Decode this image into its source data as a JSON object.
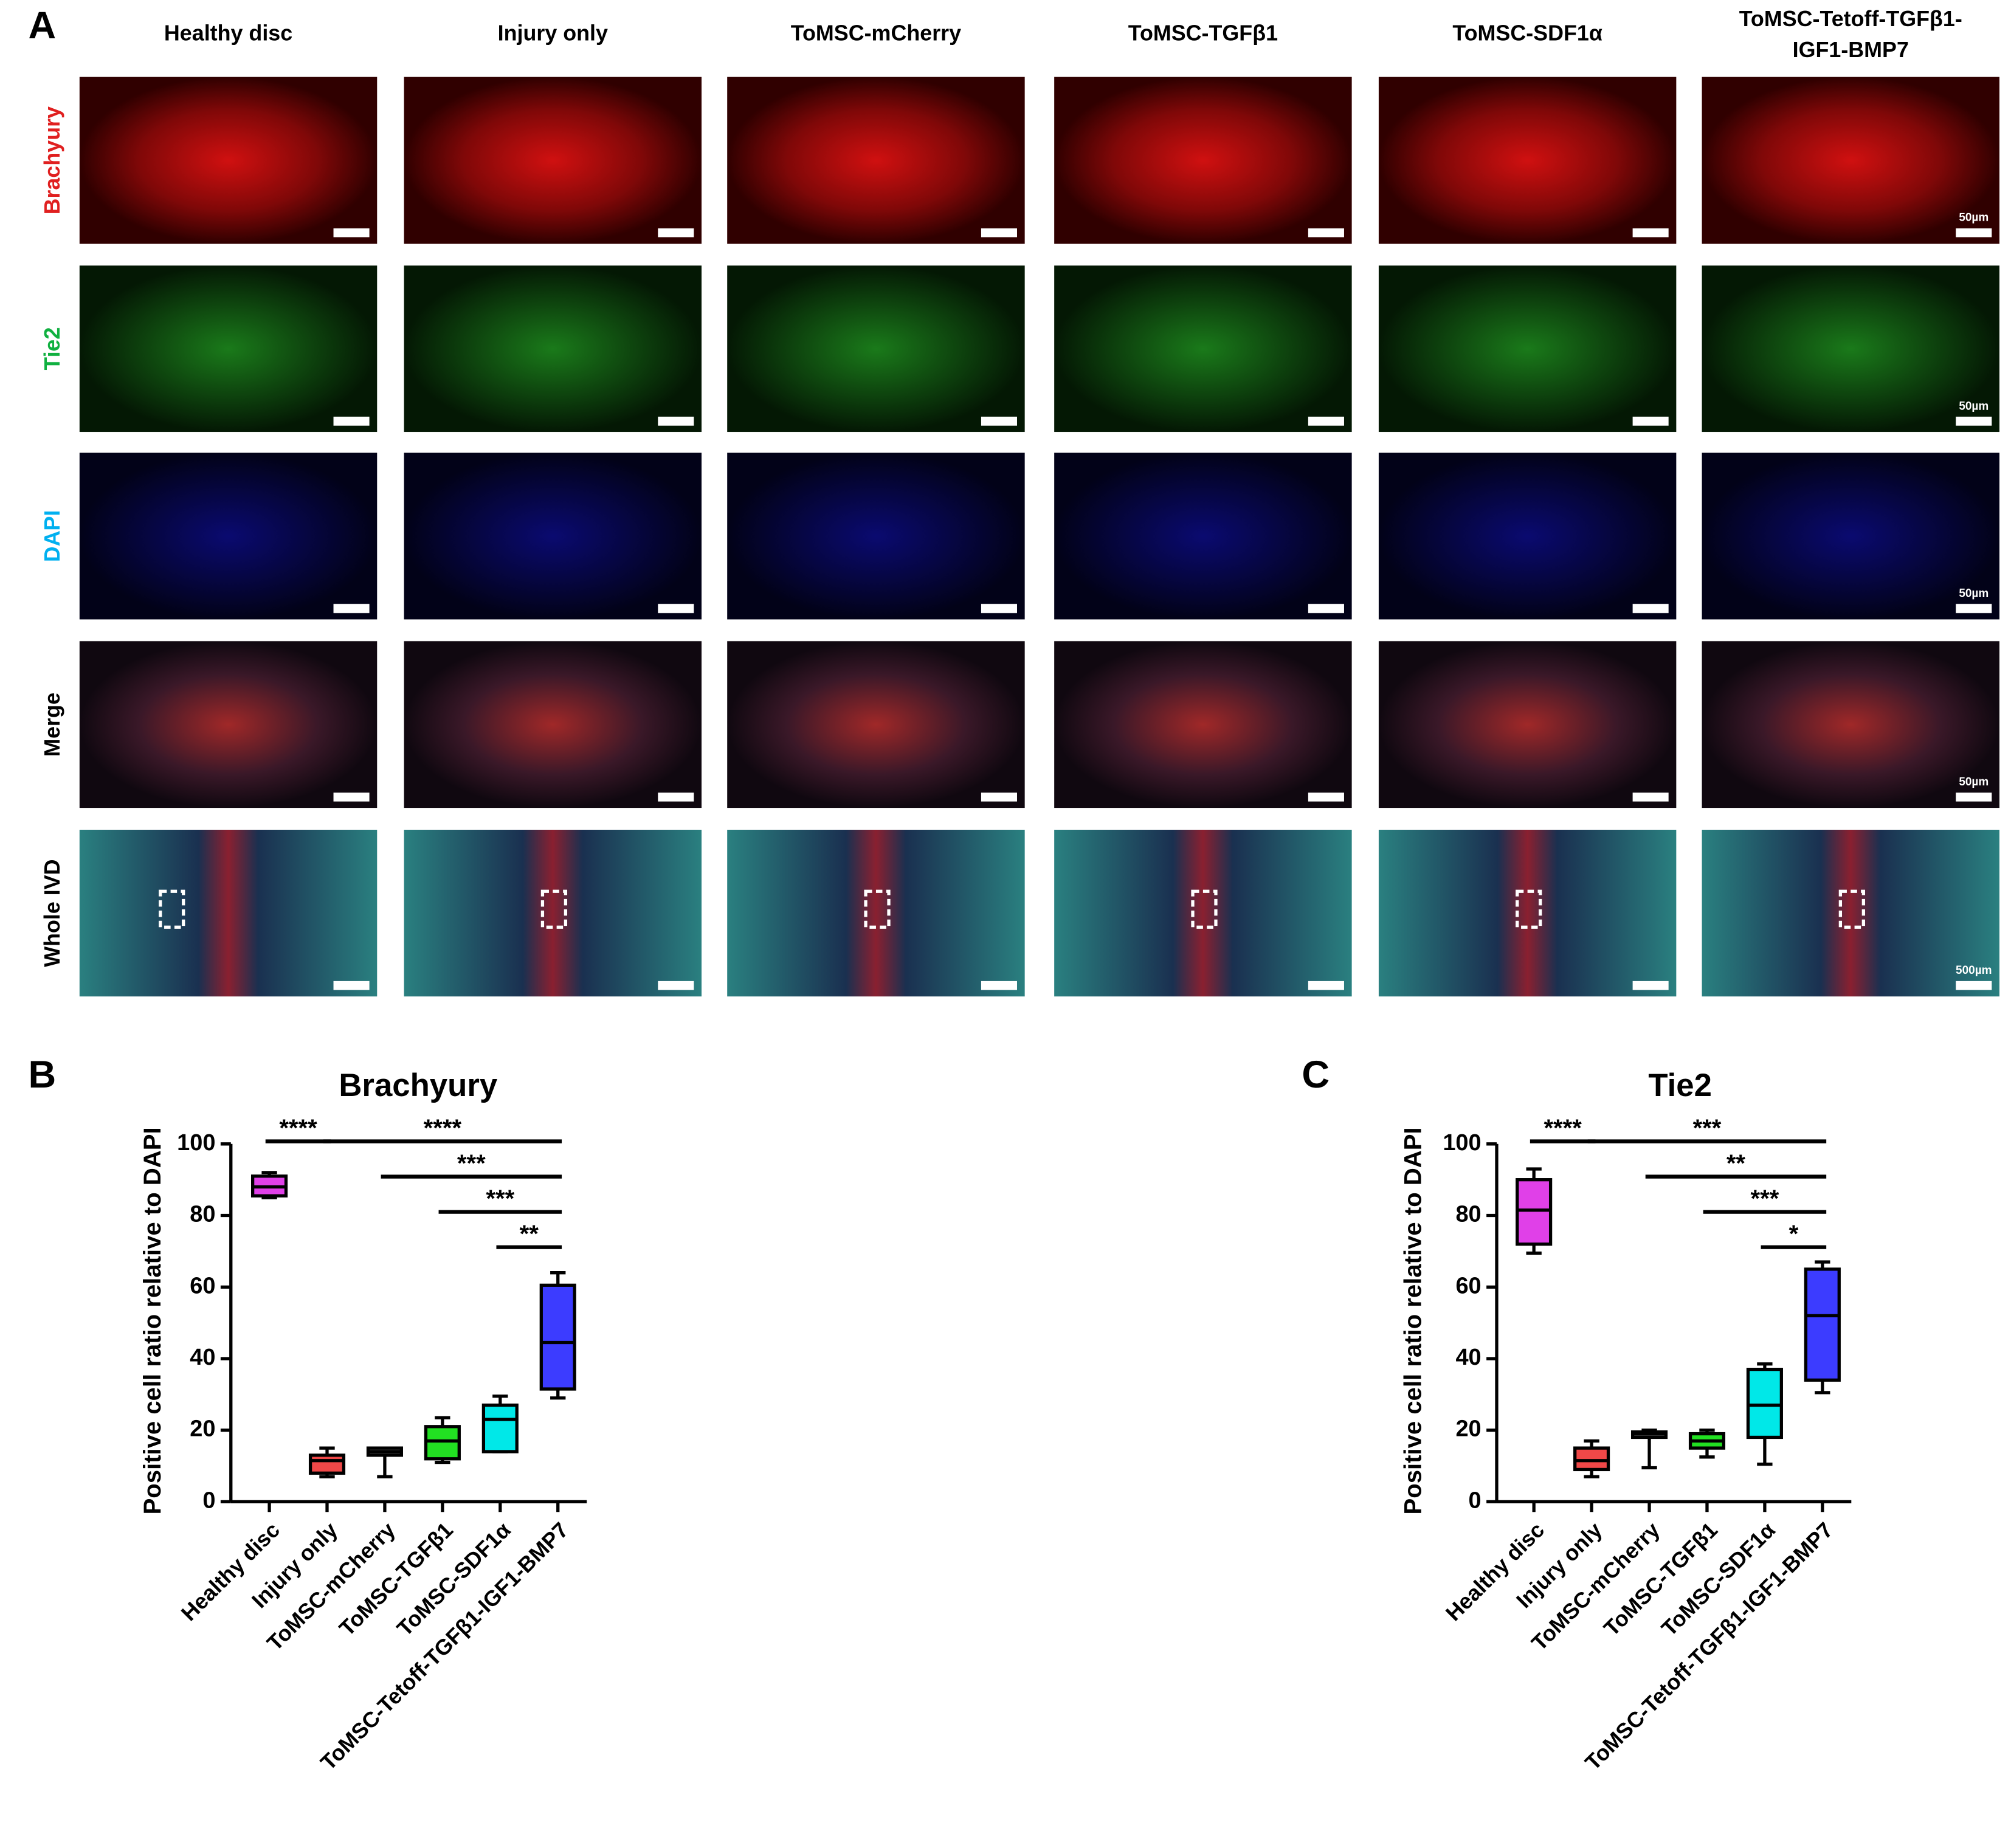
{
  "panel_a": {
    "label": "A",
    "columns": [
      [
        "Healthy disc"
      ],
      [
        "Injury only"
      ],
      [
        "ToMSC-mCherry"
      ],
      [
        "ToMSC-TGFβ1"
      ],
      [
        "ToMSC-SDF1α"
      ],
      [
        "ToMSC-Tetoff-TGFβ1-",
        "IGF1-BMP7"
      ]
    ],
    "rows": [
      "Brachyury",
      "Tie2",
      "DAPI",
      "Merge",
      "Whole IVD"
    ],
    "row_label_colors": [
      "#e02020",
      "#10b040",
      "#00b0f0",
      "#000000",
      "#000000"
    ],
    "scale_labels": [
      "50µm",
      "50µm",
      "50µm",
      "50µm",
      "500µm"
    ]
  },
  "chart_data": [
    {
      "type": "box",
      "panel": "B",
      "title": "Brachyury",
      "y_label": "Positive cell ratio relative to DAPI",
      "categories": [
        "Healthy disc",
        "Injury only",
        "ToMSC-mCherry",
        "ToMSC-TGFβ1",
        "ToMSC-SDF1α",
        "ToMSC-Tetoff-TGFβ1-IGF1-BMP7"
      ],
      "colors": [
        "#e040e8",
        "#f04848",
        "#555555",
        "#22e022",
        "#00e8e8",
        "#3c3cff"
      ],
      "boxes": [
        {
          "min": 85,
          "q1": 85.5,
          "median": 88,
          "q3": 91,
          "max": 92
        },
        {
          "min": 7,
          "q1": 8,
          "median": 11.5,
          "q3": 13,
          "max": 15
        },
        {
          "min": 7,
          "q1": 13,
          "median": 14,
          "q3": 15,
          "max": 15
        },
        {
          "min": 11,
          "q1": 12,
          "median": 17,
          "q3": 21,
          "max": 23.5
        },
        {
          "min": 14,
          "q1": 14,
          "median": 23,
          "q3": 27,
          "max": 29.5
        },
        {
          "min": 29,
          "q1": 31.5,
          "median": 44.5,
          "q3": 60.5,
          "max": 64
        }
      ],
      "ylim": [
        0,
        100
      ],
      "yticks": [
        0,
        20,
        40,
        60,
        80,
        100
      ],
      "annotations": [
        {
          "from": "Healthy disc",
          "to": "Injury only",
          "label": "****"
        },
        {
          "from": "Injury only",
          "to": "ToMSC-Tetoff-TGFβ1-IGF1-BMP7",
          "label": "****"
        },
        {
          "from": "ToMSC-mCherry",
          "to": "ToMSC-Tetoff-TGFβ1-IGF1-BMP7",
          "label": "***"
        },
        {
          "from": "ToMSC-TGFβ1",
          "to": "ToMSC-Tetoff-TGFβ1-IGF1-BMP7",
          "label": "***"
        },
        {
          "from": "ToMSC-SDF1α",
          "to": "ToMSC-Tetoff-TGFβ1-IGF1-BMP7",
          "label": "**"
        }
      ]
    },
    {
      "type": "box",
      "panel": "C",
      "title": "Tie2",
      "y_label": "Positive cell ratio relative to DAPI",
      "categories": [
        "Healthy disc",
        "Injury only",
        "ToMSC-mCherry",
        "ToMSC-TGFβ1",
        "ToMSC-SDF1α",
        "ToMSC-Tetoff-TGFβ1-IGF1-BMP7"
      ],
      "colors": [
        "#e040e8",
        "#f04848",
        "#555555",
        "#22e022",
        "#00e8e8",
        "#3c3cff"
      ],
      "boxes": [
        {
          "min": 69.5,
          "q1": 72,
          "median": 81.5,
          "q3": 90,
          "max": 93
        },
        {
          "min": 7,
          "q1": 9,
          "median": 11.5,
          "q3": 15,
          "max": 17
        },
        {
          "min": 9.5,
          "q1": 18,
          "median": 19,
          "q3": 19.5,
          "max": 20
        },
        {
          "min": 12.5,
          "q1": 15,
          "median": 17,
          "q3": 19,
          "max": 20
        },
        {
          "min": 10.5,
          "q1": 18,
          "median": 27,
          "q3": 37,
          "max": 38.5
        },
        {
          "min": 30.5,
          "q1": 34,
          "median": 52,
          "q3": 65,
          "max": 67
        }
      ],
      "ylim": [
        0,
        100
      ],
      "yticks": [
        0,
        20,
        40,
        60,
        80,
        100
      ],
      "annotations": [
        {
          "from": "Healthy disc",
          "to": "Injury only",
          "label": "****"
        },
        {
          "from": "Injury only",
          "to": "ToMSC-Tetoff-TGFβ1-IGF1-BMP7",
          "label": "***"
        },
        {
          "from": "ToMSC-mCherry",
          "to": "ToMSC-Tetoff-TGFβ1-IGF1-BMP7",
          "label": "**"
        },
        {
          "from": "ToMSC-TGFβ1",
          "to": "ToMSC-Tetoff-TGFβ1-IGF1-BMP7",
          "label": "***"
        },
        {
          "from": "ToMSC-SDF1α",
          "to": "ToMSC-Tetoff-TGFβ1-IGF1-BMP7",
          "label": "*"
        }
      ]
    }
  ]
}
